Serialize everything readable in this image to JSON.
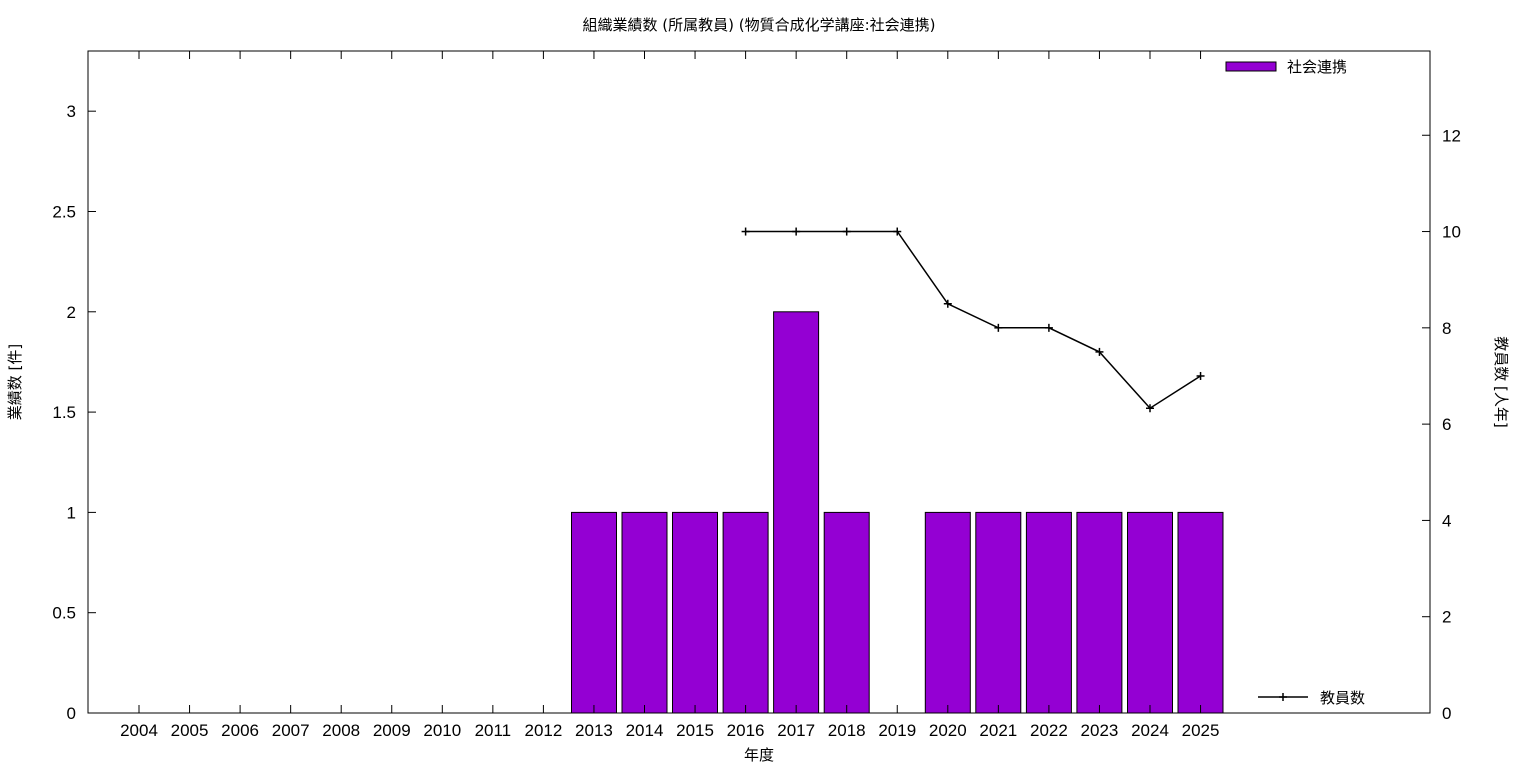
{
  "chart_data": {
    "type": "bar",
    "title": "組織業績数 (所属教員) (物質合成化学講座:社会連携)",
    "xlabel": "年度",
    "ylabel": "業績数 [件]",
    "y2label": "教員数 [人年]",
    "categories": [
      "2004",
      "2005",
      "2006",
      "2007",
      "2008",
      "2009",
      "2010",
      "2011",
      "2012",
      "2013",
      "2014",
      "2015",
      "2016",
      "2017",
      "2018",
      "2019",
      "2020",
      "2021",
      "2022",
      "2023",
      "2024",
      "2025"
    ],
    "ylim": [
      0,
      3.3
    ],
    "yticks": [
      0,
      0.5,
      1,
      1.5,
      2,
      2.5,
      3
    ],
    "y2lim": [
      0,
      13.75
    ],
    "y2ticks": [
      0,
      2,
      4,
      6,
      8,
      10,
      12
    ],
    "grid": false,
    "legend_placement": "top-right / bottom-right",
    "series": [
      {
        "name": "社会連携",
        "type": "bar",
        "axis": "left",
        "color": "#9400d3",
        "values": [
          0,
          0,
          0,
          0,
          0,
          0,
          0,
          0,
          0,
          1,
          1,
          1,
          1,
          2,
          1,
          0,
          1,
          1,
          1,
          1,
          1,
          1
        ]
      },
      {
        "name": "教員数",
        "type": "line",
        "axis": "right",
        "color": "#000000",
        "values": [
          null,
          null,
          null,
          null,
          null,
          null,
          null,
          null,
          null,
          null,
          null,
          null,
          10,
          10,
          10,
          10,
          8.5,
          8,
          8,
          7.5,
          6.33,
          7
        ]
      }
    ]
  }
}
